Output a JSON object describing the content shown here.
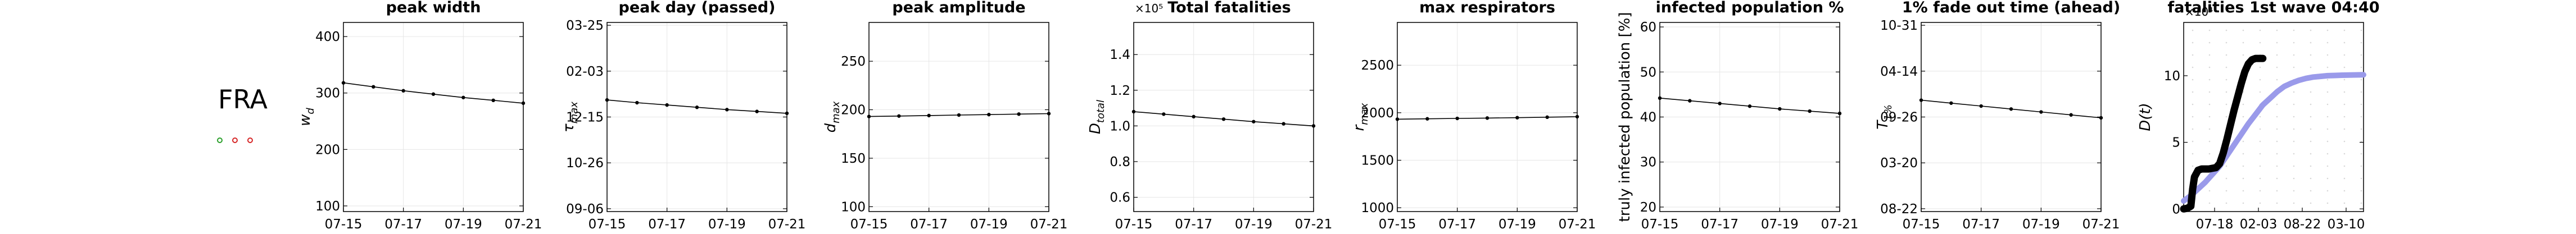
{
  "country": "FRA",
  "status_dots": [
    {
      "color": "#2ca02c"
    },
    {
      "color": "#d62728"
    },
    {
      "color": "#d62728"
    }
  ],
  "chart_data": [
    {
      "type": "line",
      "title": "peak width",
      "ylabel": "w_d",
      "ylabel_style": "italic-subscript",
      "x": [
        "07-15",
        "07-16",
        "07-17",
        "07-18",
        "07-19",
        "07-20",
        "07-21"
      ],
      "xticks": [
        "07-15",
        "07-17",
        "07-19",
        "07-21"
      ],
      "yticks": [
        "100",
        "200",
        "300",
        "400"
      ],
      "ylim": [
        90,
        425
      ],
      "values": [
        318,
        311,
        304,
        298,
        292,
        287,
        282
      ],
      "grid": true
    },
    {
      "type": "line",
      "title": "peak day (passed)",
      "ylabel": "τ_max",
      "ylabel_style": "italic-subscript",
      "x": [
        "07-15",
        "07-16",
        "07-17",
        "07-18",
        "07-19",
        "07-20",
        "07-21"
      ],
      "xticks": [
        "07-15",
        "07-17",
        "07-19",
        "07-21"
      ],
      "yticks": [
        "09-06",
        "10-26",
        "12-15",
        "02-03",
        "03-25"
      ],
      "ylim": [
        -5,
        405
      ],
      "values": [
        237,
        231,
        226,
        221,
        216,
        212,
        208
      ],
      "grid": true
    },
    {
      "type": "line",
      "title": "peak amplitude",
      "ylabel": "d_max",
      "ylabel_style": "italic-subscript",
      "x": [
        "07-15",
        "07-16",
        "07-17",
        "07-18",
        "07-19",
        "07-20",
        "07-21"
      ],
      "xticks": [
        "07-15",
        "07-17",
        "07-19",
        "07-21"
      ],
      "yticks": [
        "100",
        "150",
        "200",
        "250"
      ],
      "ylim": [
        95,
        290
      ],
      "values": [
        193,
        193.5,
        194,
        194.5,
        195,
        195.5,
        196
      ],
      "grid": true
    },
    {
      "type": "line",
      "title": "Total fatalities",
      "ylabel": "D_total",
      "ylabel_style": "italic-subscript",
      "offset_text": "×10⁵",
      "x": [
        "07-15",
        "07-16",
        "07-17",
        "07-18",
        "07-19",
        "07-20",
        "07-21"
      ],
      "xticks": [
        "07-15",
        "07-17",
        "07-19",
        "07-21"
      ],
      "yticks": [
        "0.6",
        "0.8",
        "1.0",
        "1.2",
        "1.4"
      ],
      "ylim": [
        0.52,
        1.58
      ],
      "values": [
        1.08,
        1.066,
        1.052,
        1.038,
        1.024,
        1.012,
        1.0
      ],
      "grid": true
    },
    {
      "type": "line",
      "title": "max respirators",
      "ylabel": "r_max",
      "ylabel_style": "italic-subscript",
      "x": [
        "07-15",
        "07-16",
        "07-17",
        "07-18",
        "07-19",
        "07-20",
        "07-21"
      ],
      "xticks": [
        "07-15",
        "07-17",
        "07-19",
        "07-21"
      ],
      "yticks": [
        "1000",
        "1500",
        "2000",
        "2500"
      ],
      "ylim": [
        960,
        2950
      ],
      "values": [
        1932,
        1936,
        1940,
        1944,
        1948,
        1953,
        1958
      ],
      "grid": true
    },
    {
      "type": "line",
      "title": "infected population %",
      "ylabel": "truly infected population [%]",
      "ylabel_style": "plain",
      "x": [
        "07-15",
        "07-16",
        "07-17",
        "07-18",
        "07-19",
        "07-20",
        "07-21"
      ],
      "xticks": [
        "07-15",
        "07-17",
        "07-19",
        "07-21"
      ],
      "yticks": [
        "20",
        "30",
        "40",
        "50",
        "60"
      ],
      "ylim": [
        19,
        61
      ],
      "values": [
        44.2,
        43.6,
        43.0,
        42.4,
        41.8,
        41.3,
        40.8
      ],
      "grid": true
    },
    {
      "type": "line",
      "title": "1% fade out time (ahead)",
      "ylabel": "T_1%",
      "ylabel_style": "italic-subscript",
      "x": [
        "07-15",
        "07-16",
        "07-17",
        "07-18",
        "07-19",
        "07-20",
        "07-21"
      ],
      "xticks": [
        "07-15",
        "07-17",
        "07-19",
        "07-21"
      ],
      "yticks": [
        "08-22",
        "03-20",
        "09-26",
        "04-14",
        "10-31"
      ],
      "ylim": [
        -0.25,
        4.25
      ],
      "values": [
        2.4,
        2.33,
        2.26,
        2.19,
        2.12,
        2.05,
        1.98
      ],
      "grid": true
    },
    {
      "type": "line",
      "title": "fatalities 1st wave 04:40",
      "ylabel": "D(t)",
      "ylabel_style": "italic",
      "offset_text": "×10⁴",
      "xticks": [
        "07-18",
        "02-03",
        "08-22",
        "03-10"
      ],
      "yticks": [
        "0",
        "5",
        "10"
      ],
      "xlim": [
        0,
        100
      ],
      "ylim": [
        -0.2,
        14
      ],
      "grid": "dotted",
      "series": [
        {
          "color": "#9a9aea",
          "x": [
            0,
            4,
            8,
            12,
            16,
            20,
            24,
            28,
            32,
            36,
            40,
            44,
            48,
            52,
            56,
            60,
            64,
            68,
            72,
            76,
            80,
            84,
            88,
            92,
            96,
            100
          ],
          "values": [
            0.6,
            1.0,
            1.5,
            2.0,
            2.6,
            3.2,
            4.0,
            4.8,
            5.6,
            6.4,
            7.1,
            7.8,
            8.3,
            8.8,
            9.2,
            9.45,
            9.65,
            9.8,
            9.9,
            9.95,
            10.0,
            10.02,
            10.04,
            10.05,
            10.06,
            10.07
          ]
        },
        {
          "color": "#000000",
          "x": [
            0,
            2,
            4,
            5,
            6,
            8,
            10,
            12,
            14,
            16,
            18,
            20,
            22,
            24,
            26,
            28,
            30,
            32,
            34,
            36,
            38,
            40,
            42,
            44
          ],
          "values": [
            0,
            0.05,
            0.2,
            1.5,
            2.4,
            2.9,
            3.0,
            3.0,
            3.0,
            3.05,
            3.1,
            3.4,
            4.2,
            5.2,
            6.3,
            7.4,
            8.4,
            9.4,
            10.3,
            10.9,
            11.2,
            11.3,
            11.3,
            11.3
          ]
        }
      ]
    }
  ]
}
